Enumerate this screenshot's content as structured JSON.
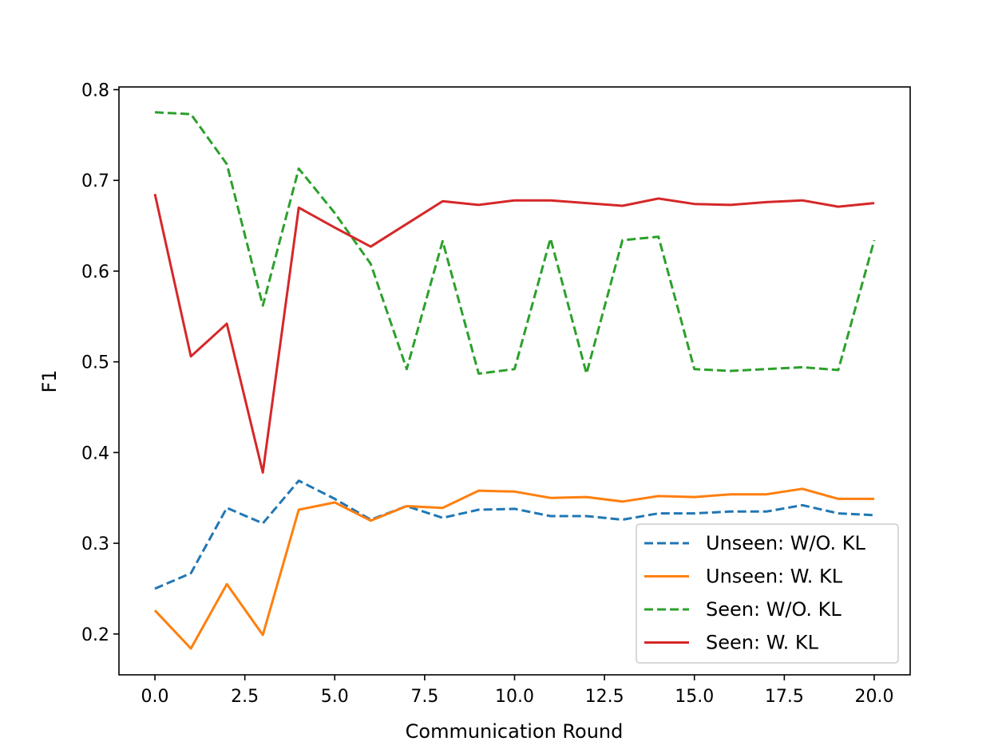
{
  "chart_data": {
    "type": "line",
    "xlabel": "Communication Round",
    "ylabel": "F1",
    "xlim": [
      -1.0,
      21.0
    ],
    "ylim": [
      0.155,
      0.803
    ],
    "xticks": [
      0.0,
      2.5,
      5.0,
      7.5,
      10.0,
      12.5,
      15.0,
      17.5,
      20.0
    ],
    "xtick_labels": [
      "0.0",
      "2.5",
      "5.0",
      "7.5",
      "10.0",
      "12.5",
      "15.0",
      "17.5",
      "20.0"
    ],
    "yticks": [
      0.2,
      0.3,
      0.4,
      0.5,
      0.6,
      0.7,
      0.8
    ],
    "ytick_labels": [
      "0.2",
      "0.3",
      "0.4",
      "0.5",
      "0.6",
      "0.7",
      "0.8"
    ],
    "grid": false,
    "legend_position": "lower-right",
    "x": [
      0,
      1,
      2,
      3,
      4,
      5,
      6,
      7,
      8,
      9,
      10,
      11,
      12,
      13,
      14,
      15,
      16,
      17,
      18,
      19,
      20
    ],
    "series": [
      {
        "name": "Unseen: W/O. KL",
        "color": "#1f77b4",
        "linestyle": "dashed",
        "values": [
          0.25,
          0.267,
          0.339,
          0.322,
          0.369,
          0.349,
          0.326,
          0.341,
          0.328,
          0.337,
          0.338,
          0.33,
          0.33,
          0.326,
          0.333,
          0.333,
          0.335,
          0.335,
          0.342,
          0.333,
          0.331
        ]
      },
      {
        "name": "Unseen: W. KL",
        "color": "#ff7f0e",
        "linestyle": "solid",
        "values": [
          0.226,
          0.184,
          0.255,
          0.199,
          0.337,
          0.345,
          0.325,
          0.341,
          0.339,
          0.358,
          0.357,
          0.35,
          0.351,
          0.346,
          0.352,
          0.351,
          0.354,
          0.354,
          0.36,
          0.349,
          0.349
        ]
      },
      {
        "name": "Seen: W/O. KL",
        "color": "#2ca02c",
        "linestyle": "dashed",
        "values": [
          0.775,
          0.773,
          0.718,
          0.562,
          0.713,
          0.664,
          0.608,
          0.492,
          0.633,
          0.487,
          0.492,
          0.636,
          0.487,
          0.634,
          0.638,
          0.492,
          0.49,
          0.492,
          0.494,
          0.491,
          0.634
        ]
      },
      {
        "name": "Seen: W. KL",
        "color": "#d62728",
        "linestyle": "solid",
        "values": [
          0.685,
          0.506,
          0.542,
          0.378,
          0.67,
          0.648,
          0.627,
          0.652,
          0.677,
          0.673,
          0.678,
          0.678,
          0.675,
          0.672,
          0.68,
          0.674,
          0.673,
          0.676,
          0.678,
          0.671,
          0.675
        ]
      }
    ]
  }
}
